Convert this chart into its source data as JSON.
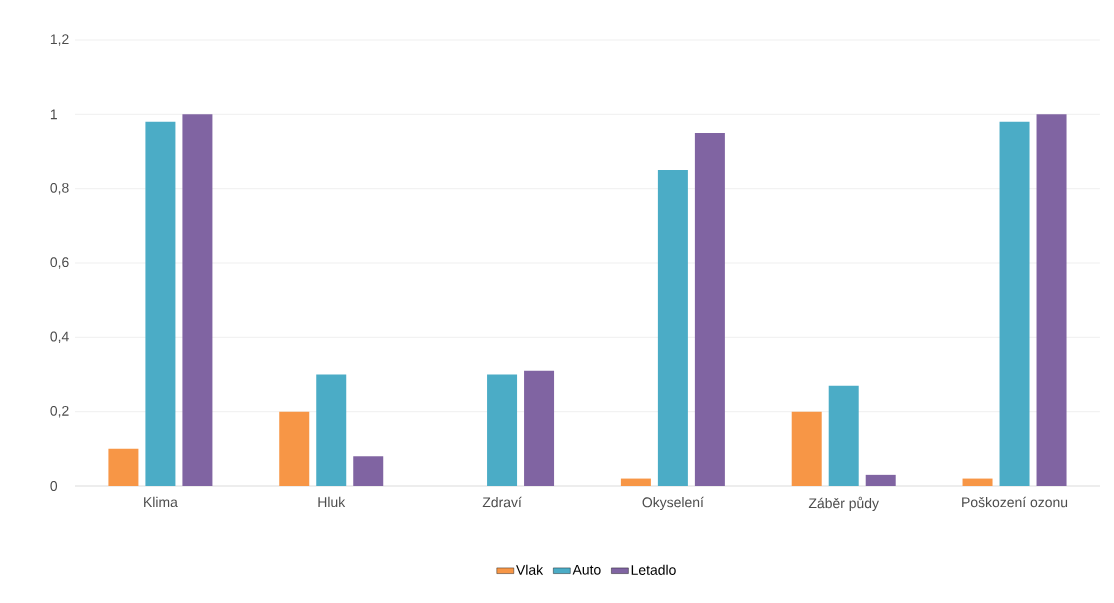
{
  "chart_data": {
    "type": "bar",
    "categories": [
      "Klima",
      "Hluk",
      "Zdraví",
      "Okyselení",
      "Záběr půdy",
      "Poškození ozonu"
    ],
    "series": [
      {
        "name": "Vlak",
        "color": "#f79646",
        "values": [
          0.1,
          0.2,
          0,
          0.02,
          0.2,
          0.02
        ]
      },
      {
        "name": "Auto",
        "color": "#4bacc6",
        "values": [
          0.98,
          0.3,
          0.3,
          0.85,
          0.27,
          0.98
        ]
      },
      {
        "name": "Letadlo",
        "color": "#8064a2",
        "values": [
          1,
          0.08,
          0.31,
          0.95,
          0.03,
          1
        ]
      }
    ],
    "ylim": [
      0,
      1.2
    ],
    "yticks": [
      0,
      {
        "value": 0.2,
        "label": "0,2"
      },
      {
        "value": 0.4,
        "label": "0,4"
      },
      {
        "value": 0.6,
        "label": "0,6"
      },
      {
        "value": 0.8,
        "label": "0,8"
      },
      1,
      {
        "value": 1.2,
        "label": "1,2"
      }
    ],
    "grid": "y",
    "legend": "bottom"
  }
}
